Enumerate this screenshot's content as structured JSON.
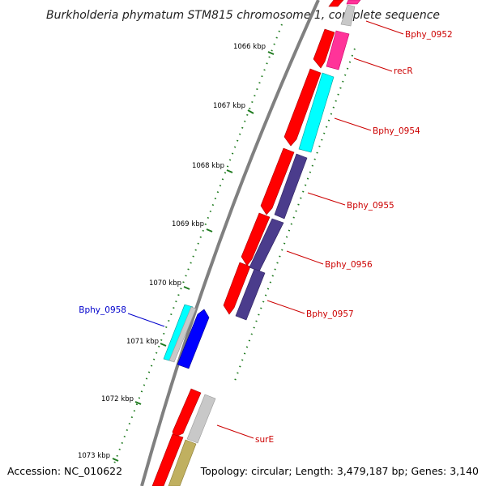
{
  "title": "Burkholderia phymatum STM815 chromosome 1, complete sequence",
  "accession": "Accession: NC_010622",
  "topology": "Topology: circular; Length: 3,479,187 bp; Genes: 3,140",
  "colors": {
    "backbone": "#808080",
    "forward_cds": "#ff0000",
    "gc_tick": "#1e7a1e",
    "label_red": "#cc0000",
    "label_blue": "#0000cc"
  },
  "kbp_ticks": [
    {
      "label": "1066 kbp"
    },
    {
      "label": "1067 kbp"
    },
    {
      "label": "1068 kbp"
    },
    {
      "label": "1069 kbp"
    },
    {
      "label": "1070 kbp"
    },
    {
      "label": "1071 kbp"
    },
    {
      "label": "1072 kbp"
    },
    {
      "label": "1073 kbp"
    }
  ],
  "gene_labels": [
    {
      "name": "Bphy_0952",
      "color": "#cc0000"
    },
    {
      "name": "recR",
      "color": "#cc0000"
    },
    {
      "name": "Bphy_0954",
      "color": "#cc0000"
    },
    {
      "name": "Bphy_0955",
      "color": "#cc0000"
    },
    {
      "name": "Bphy_0956",
      "color": "#cc0000"
    },
    {
      "name": "Bphy_0957",
      "color": "#cc0000"
    },
    {
      "name": "Bphy_0958",
      "color": "#0000cc"
    },
    {
      "name": "surE",
      "color": "#cc0000"
    }
  ],
  "feature_colors": {
    "pink": "#ff3399",
    "cyan": "#00ffff",
    "purple": "#4b3c8c",
    "gray": "#c8c8c8",
    "blue": "#0000ff",
    "olive": "#c0b060"
  }
}
